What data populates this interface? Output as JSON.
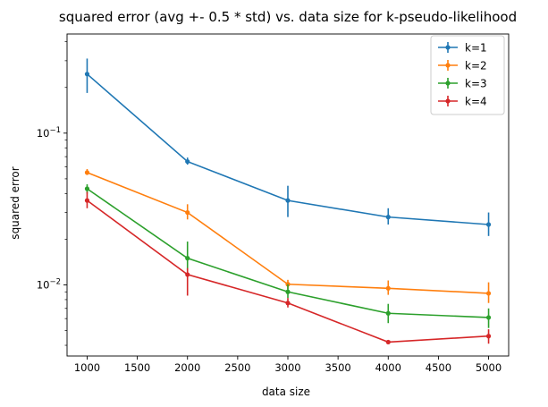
{
  "chart_data": {
    "type": "line",
    "title": "squared error (avg +- 0.5 * std) vs. data size for k-pseudo-likelihood",
    "xlabel": "data size",
    "ylabel": "squared error",
    "x": [
      1000,
      2000,
      3000,
      4000,
      5000
    ],
    "xticks": [
      "1000",
      "1500",
      "2000",
      "2500",
      "3000",
      "3500",
      "4000",
      "4500",
      "5000"
    ],
    "xlim": [
      800,
      5200
    ],
    "yscale": "log",
    "ylim": [
      0.0034,
      0.45
    ],
    "yticks": [
      "10^-2",
      "10^-1"
    ],
    "legend_position": "top-right",
    "grid": false,
    "series": [
      {
        "name": "k=1",
        "color": "#1f77b4",
        "values": [
          0.245,
          0.065,
          0.036,
          0.028,
          0.025
        ],
        "err_low": [
          0.184,
          0.062,
          0.028,
          0.025,
          0.021
        ],
        "err_high": [
          0.31,
          0.069,
          0.045,
          0.032,
          0.03
        ]
      },
      {
        "name": "k=2",
        "color": "#ff7f0e",
        "values": [
          0.055,
          0.03,
          0.0101,
          0.0095,
          0.0088
        ],
        "err_low": [
          0.053,
          0.027,
          0.0094,
          0.0086,
          0.0076
        ],
        "err_high": [
          0.058,
          0.034,
          0.0108,
          0.0107,
          0.0104
        ]
      },
      {
        "name": "k=3",
        "color": "#2ca02c",
        "values": [
          0.043,
          0.015,
          0.009,
          0.0065,
          0.0061
        ],
        "err_low": [
          0.04,
          0.0125,
          0.0082,
          0.0056,
          0.0052
        ],
        "err_high": [
          0.046,
          0.0193,
          0.0101,
          0.0075,
          0.007
        ]
      },
      {
        "name": "k=4",
        "color": "#d62728",
        "values": [
          0.036,
          0.0117,
          0.0076,
          0.0042,
          0.0046
        ],
        "err_low": [
          0.032,
          0.0085,
          0.0071,
          0.0041,
          0.0041
        ],
        "err_high": [
          0.041,
          0.0129,
          0.0082,
          0.0043,
          0.0051
        ]
      }
    ]
  }
}
